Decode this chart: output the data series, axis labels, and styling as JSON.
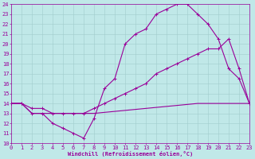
{
  "xlabel": "Windchill (Refroidissement éolien,°C)",
  "bg_color": "#c0e8e8",
  "line_color": "#990099",
  "grid_color": "#a0cccc",
  "xlim": [
    0,
    23
  ],
  "ylim": [
    10,
    24
  ],
  "xticks": [
    0,
    1,
    2,
    3,
    4,
    5,
    6,
    7,
    8,
    9,
    10,
    11,
    12,
    13,
    14,
    15,
    16,
    17,
    18,
    19,
    20,
    21,
    22,
    23
  ],
  "yticks": [
    10,
    11,
    12,
    13,
    14,
    15,
    16,
    17,
    18,
    19,
    20,
    21,
    22,
    23,
    24
  ],
  "curve1_x": [
    0,
    1,
    2,
    3,
    4,
    5,
    6,
    7,
    8,
    9,
    10,
    11,
    12,
    13,
    14,
    15,
    16,
    17,
    18,
    19,
    20,
    21,
    22,
    23
  ],
  "curve1_y": [
    14,
    14,
    13,
    13,
    12,
    11.5,
    11,
    10.5,
    12.5,
    15.5,
    16.5,
    20,
    21,
    21.5,
    23,
    23.5,
    24,
    24,
    23,
    22,
    20.5,
    17.5,
    16.5,
    14
  ],
  "curve2_x": [
    0,
    1,
    2,
    3,
    4,
    5,
    6,
    7,
    8,
    9,
    10,
    11,
    12,
    13,
    14,
    15,
    16,
    17,
    18,
    19,
    20,
    21,
    22,
    23
  ],
  "curve2_y": [
    14,
    14,
    13.5,
    13.5,
    13,
    13,
    13,
    13,
    13.5,
    14,
    14.5,
    15,
    15.5,
    16,
    17,
    17.5,
    18,
    18.5,
    19,
    19.5,
    19.5,
    20.5,
    17.5,
    14
  ],
  "curve3_x": [
    0,
    1,
    2,
    3,
    4,
    5,
    6,
    7,
    8,
    9,
    10,
    11,
    12,
    13,
    14,
    15,
    16,
    17,
    18,
    19,
    20,
    21,
    22,
    23
  ],
  "curve3_y": [
    14,
    14,
    13,
    13,
    13,
    13,
    13,
    13,
    13,
    13.1,
    13.2,
    13.3,
    13.4,
    13.5,
    13.6,
    13.7,
    13.8,
    13.9,
    14,
    14,
    14,
    14,
    14,
    14
  ],
  "marker_size": 2.5,
  "lw": 0.8,
  "tick_fontsize": 5,
  "xlabel_fontsize": 5
}
